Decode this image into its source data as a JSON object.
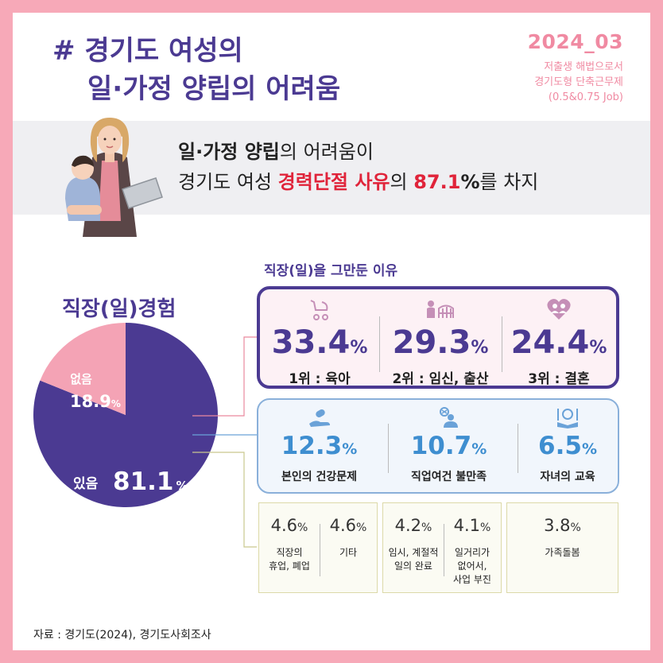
{
  "title": {
    "line1": "# 경기도 여성의",
    "line2": "일·가정 양립의 어려움"
  },
  "issue": {
    "number": "2024_03",
    "sub1": "저출생 해법으로서",
    "sub2": "경기도형 단축근무제",
    "sub3": "(0.5&0.75 Job)"
  },
  "banner": {
    "l1_bold": "일·가정 양립",
    "l1_rest": "의 어려움이",
    "l2_pre": "경기도 여성 ",
    "l2_red1": "경력단절 사유",
    "l2_mid": "의 ",
    "l2_red2": "87.1",
    "l2_pct": "%",
    "l2_post": "를 차지"
  },
  "colors": {
    "purple": "#4b3a92",
    "pink": "#f4a3b5",
    "blue": "#3e8ed0",
    "red": "#e0243a"
  },
  "chart_data": [
    {
      "type": "pie",
      "title": "직장(일)경험",
      "slices": [
        {
          "label": "있음",
          "value": 81.1,
          "display": "81.1",
          "color": "#4b3a92"
        },
        {
          "label": "없음",
          "value": 18.9,
          "display": "18.9",
          "color": "#f4a3b5"
        }
      ],
      "unit": "%"
    },
    {
      "type": "table",
      "title": "직장(일)을 그만둔 이유",
      "unit": "%",
      "top": [
        {
          "value": "33.4",
          "rank": "1위 : 육아",
          "icon": "stroller-icon"
        },
        {
          "value": "29.3",
          "rank": "2위 : 임신, 출산",
          "icon": "crib-icon"
        },
        {
          "value": "24.4",
          "rank": "3위 : 결혼",
          "icon": "couple-heart-icon"
        }
      ],
      "mid": [
        {
          "value": "12.3",
          "label": "본인의 건강문제",
          "icon": "health-icon"
        },
        {
          "value": "10.7",
          "label": "직업여건 불만족",
          "icon": "dissatisfied-worker-icon"
        },
        {
          "value": "6.5",
          "label": "자녀의 교육",
          "icon": "book-lightbulb-icon"
        }
      ],
      "low": [
        {
          "value": "4.6",
          "label": "직장의\n휴업, 폐업"
        },
        {
          "value": "4.6",
          "label": "기타"
        },
        {
          "value": "4.2",
          "label": "임시, 계절적\n일의 완료"
        },
        {
          "value": "4.1",
          "label": "일거리가\n없어서,\n사업 부진"
        },
        {
          "value": "3.8",
          "label": "가족돌봄"
        }
      ]
    }
  ],
  "source": "자료 : 경기도(2024), 경기도사회조사"
}
